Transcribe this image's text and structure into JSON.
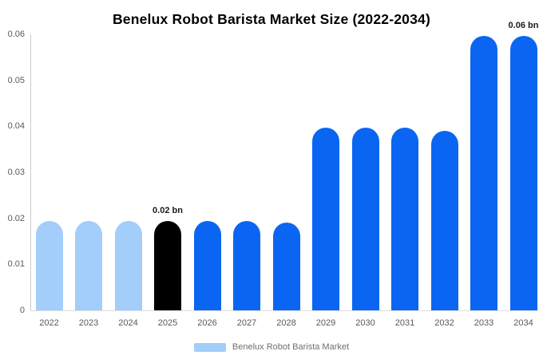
{
  "title": "Benelux Robot Barista Market Size (2022-2034)",
  "legend": {
    "label": "Benelux Robot Barista Market",
    "swatch_color_key": "light"
  },
  "colors": {
    "primary": "#0a66f2",
    "light": "#a3cdfa",
    "highlight": "#000000",
    "axis_line": "#cccccc",
    "baseline": "#dddddd",
    "tick_text": "#595959",
    "legend_text": "#6e6e6e",
    "label_text": "#1a1a1a"
  },
  "chart_data": {
    "type": "bar",
    "title": "Benelux Robot Barista Market Size (2022-2034)",
    "xlabel": "",
    "ylabel": "",
    "categories": [
      "2022",
      "2023",
      "2024",
      "2025",
      "2026",
      "2027",
      "2028",
      "2029",
      "2030",
      "2031",
      "2032",
      "2033",
      "2034"
    ],
    "values": [
      0.0195,
      0.0195,
      0.0195,
      0.0195,
      0.0195,
      0.0195,
      0.019,
      0.0397,
      0.0397,
      0.0397,
      0.039,
      0.0597,
      0.0597
    ],
    "bar_color_keys": [
      "light",
      "light",
      "light",
      "highlight",
      "primary",
      "primary",
      "primary",
      "primary",
      "primary",
      "primary",
      "primary",
      "primary",
      "primary"
    ],
    "point_labels": [
      {
        "category": "2025",
        "text": "0.02 bn"
      },
      {
        "category": "2034",
        "text": "0.06 bn"
      }
    ],
    "ylim": [
      0,
      0.06
    ],
    "y_ticks": [
      "0",
      "0.01",
      "0.02",
      "0.03",
      "0.04",
      "0.05",
      "0.06"
    ],
    "grid": false,
    "legend_entries": [
      "Benelux Robot Barista Market"
    ],
    "legend_position": "bottom"
  }
}
